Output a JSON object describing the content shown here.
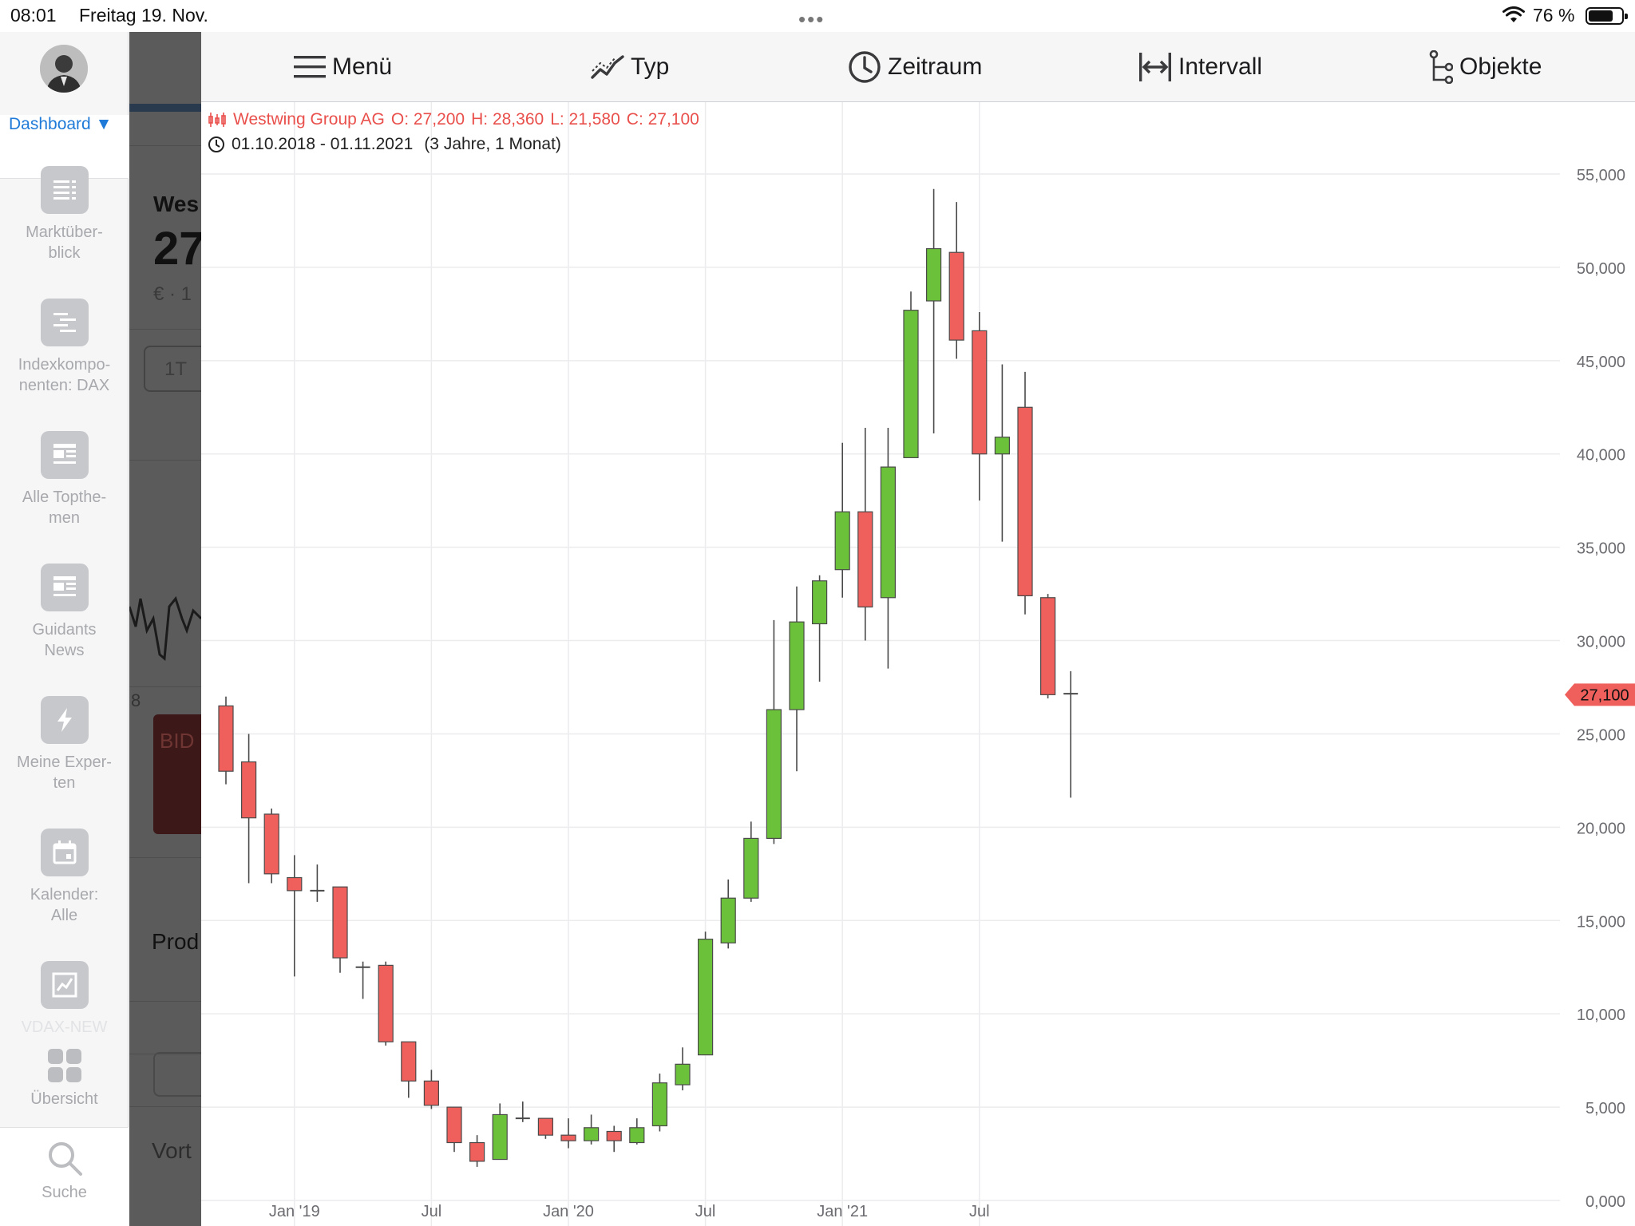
{
  "status_bar": {
    "time": "08:01",
    "date": "Freitag 19. Nov.",
    "battery_percent": "76 %",
    "battery_level": 0.76
  },
  "sidebar": {
    "dashboard_label": "Dashboard ▼",
    "items": [
      {
        "label": "Marktüber-\nblick",
        "icon": "list-icon"
      },
      {
        "label": "Indexkompo-\nnenten: DAX",
        "icon": "list-icon"
      },
      {
        "label": "Alle Topthe-\nmen",
        "icon": "newspaper-icon"
      },
      {
        "label": "Guidants\nNews",
        "icon": "newspaper-icon"
      },
      {
        "label": "Meine Exper-\nten",
        "icon": "lightning-icon"
      },
      {
        "label": "Kalender:\nAlle",
        "icon": "calendar-icon"
      },
      {
        "label": "VDAX-NEW",
        "icon": "chart-icon"
      }
    ],
    "overview_label": "Übersicht",
    "search_label": "Suche"
  },
  "background_app": {
    "title_fragment": "Wes",
    "price_fragment": "27",
    "currency_fragment": "€ · 1",
    "range_chip": "1T",
    "bid_fragment": "BID",
    "tick_fragment": "8",
    "products_fragment": "Prod",
    "vort_fragment": "Vort"
  },
  "toolbar": {
    "menu_label": "Menü",
    "type_label": "Typ",
    "period_label": "Zeitraum",
    "interval_label": "Intervall",
    "objects_label": "Objekte"
  },
  "legend": {
    "instrument": "Westwing Group AG",
    "open": "O: 27,200",
    "high": "H: 28,360",
    "low": "L: 21,580",
    "close": "C: 27,100",
    "range": "01.10.2018 - 01.11.2021",
    "duration": "(3 Jahre, 1 Monat)"
  },
  "colors": {
    "up": "#6cc13a",
    "down": "#ef5f5b",
    "accent_blue": "#1f7ad8",
    "legend_red": "#e9504c"
  },
  "chart_data": {
    "type": "candlestick",
    "title": "Westwing Group AG",
    "ylim": [
      0,
      55000
    ],
    "y_ticks": [
      "0,000",
      "5,000",
      "10,000",
      "15,000",
      "20,000",
      "25,000",
      "30,000",
      "35,000",
      "40,000",
      "45,000",
      "50,000",
      "55,000"
    ],
    "y_tick_values": [
      0,
      5000,
      10000,
      15000,
      20000,
      25000,
      30000,
      35000,
      40000,
      45000,
      50000,
      55000
    ],
    "x_ticks": [
      {
        "label": "Jan '19",
        "index": 3
      },
      {
        "label": "Jul",
        "index": 9
      },
      {
        "label": "Jan '20",
        "index": 15
      },
      {
        "label": "Jul",
        "index": 21
      },
      {
        "label": "Jan '21",
        "index": 27
      },
      {
        "label": "Jul",
        "index": 33
      }
    ],
    "last_price_label": "27,100",
    "last_price": 27100,
    "candles": [
      {
        "date": "2018-10",
        "o": 26500,
        "h": 27000,
        "l": 22300,
        "c": 23000
      },
      {
        "date": "2018-11",
        "o": 23500,
        "h": 25000,
        "l": 17000,
        "c": 20500
      },
      {
        "date": "2018-12",
        "o": 20700,
        "h": 21000,
        "l": 17000,
        "c": 17500
      },
      {
        "date": "2019-01",
        "o": 17300,
        "h": 18500,
        "l": 12000,
        "c": 16600
      },
      {
        "date": "2019-02",
        "o": 16600,
        "h": 18000,
        "l": 16000,
        "c": 16600
      },
      {
        "date": "2019-03",
        "o": 16800,
        "h": 16800,
        "l": 12200,
        "c": 13000
      },
      {
        "date": "2019-04",
        "o": 12500,
        "h": 12800,
        "l": 10800,
        "c": 12500
      },
      {
        "date": "2019-05",
        "o": 12600,
        "h": 12800,
        "l": 8300,
        "c": 8500
      },
      {
        "date": "2019-06",
        "o": 8500,
        "h": 8500,
        "l": 5500,
        "c": 6400
      },
      {
        "date": "2019-07",
        "o": 6400,
        "h": 7000,
        "l": 4900,
        "c": 5100
      },
      {
        "date": "2019-08",
        "o": 5000,
        "h": 5000,
        "l": 2600,
        "c": 3100
      },
      {
        "date": "2019-09",
        "o": 3100,
        "h": 3500,
        "l": 1800,
        "c": 2100
      },
      {
        "date": "2019-10",
        "o": 2200,
        "h": 5200,
        "l": 2200,
        "c": 4600
      },
      {
        "date": "2019-11",
        "o": 4400,
        "h": 5300,
        "l": 4200,
        "c": 4400
      },
      {
        "date": "2019-12",
        "o": 4400,
        "h": 4400,
        "l": 3300,
        "c": 3500
      },
      {
        "date": "2020-01",
        "o": 3500,
        "h": 4400,
        "l": 2800,
        "c": 3200
      },
      {
        "date": "2020-02",
        "o": 3200,
        "h": 4600,
        "l": 3000,
        "c": 3900
      },
      {
        "date": "2020-03",
        "o": 3700,
        "h": 4000,
        "l": 2600,
        "c": 3200
      },
      {
        "date": "2020-04",
        "o": 3100,
        "h": 4400,
        "l": 3000,
        "c": 3900
      },
      {
        "date": "2020-05",
        "o": 4000,
        "h": 6800,
        "l": 3700,
        "c": 6300
      },
      {
        "date": "2020-06",
        "o": 6200,
        "h": 8200,
        "l": 5900,
        "c": 7300
      },
      {
        "date": "2020-07",
        "o": 7800,
        "h": 14400,
        "l": 7800,
        "c": 14000
      },
      {
        "date": "2020-08",
        "o": 13800,
        "h": 17200,
        "l": 13500,
        "c": 16200
      },
      {
        "date": "2020-09",
        "o": 16200,
        "h": 20300,
        "l": 16000,
        "c": 19400
      },
      {
        "date": "2020-10",
        "o": 19400,
        "h": 31100,
        "l": 19100,
        "c": 26300
      },
      {
        "date": "2020-11",
        "o": 26300,
        "h": 32900,
        "l": 23000,
        "c": 31000
      },
      {
        "date": "2020-12",
        "o": 30900,
        "h": 33500,
        "l": 27800,
        "c": 33200
      },
      {
        "date": "2021-01",
        "o": 33800,
        "h": 40600,
        "l": 32300,
        "c": 36900
      },
      {
        "date": "2021-02",
        "o": 36900,
        "h": 41400,
        "l": 30000,
        "c": 31800
      },
      {
        "date": "2021-03",
        "o": 32300,
        "h": 41400,
        "l": 28500,
        "c": 39300
      },
      {
        "date": "2021-04",
        "o": 39800,
        "h": 48700,
        "l": 39800,
        "c": 47700
      },
      {
        "date": "2021-05",
        "o": 48200,
        "h": 54200,
        "l": 41100,
        "c": 51000
      },
      {
        "date": "2021-06",
        "o": 50800,
        "h": 53500,
        "l": 45100,
        "c": 46100
      },
      {
        "date": "2021-07",
        "o": 46600,
        "h": 47600,
        "l": 37500,
        "c": 40000
      },
      {
        "date": "2021-08",
        "o": 40000,
        "h": 44800,
        "l": 35300,
        "c": 40900
      },
      {
        "date": "2021-09",
        "o": 42500,
        "h": 44400,
        "l": 31400,
        "c": 32400
      },
      {
        "date": "2021-10",
        "o": 32300,
        "h": 32500,
        "l": 26900,
        "c": 27100
      },
      {
        "date": "2021-11",
        "o": 27200,
        "h": 28360,
        "l": 21580,
        "c": 27100
      }
    ]
  }
}
